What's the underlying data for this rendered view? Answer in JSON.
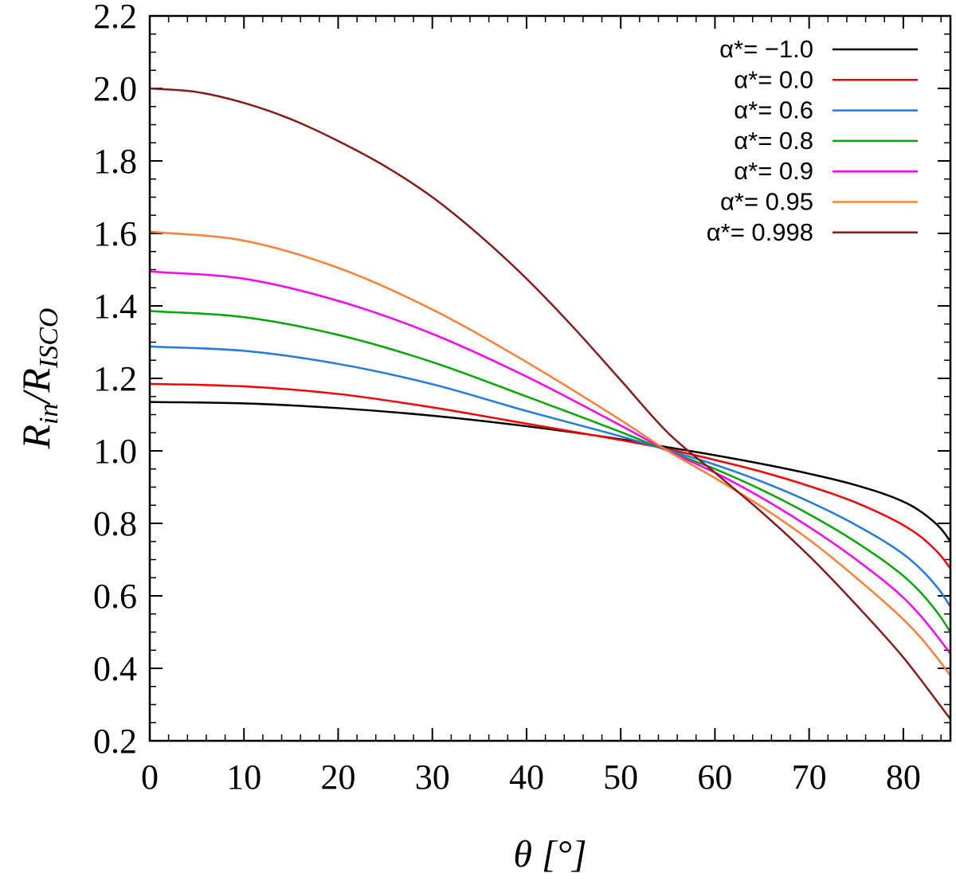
{
  "chart_data": {
    "type": "line",
    "title": "",
    "xlabel": "θ [°]",
    "ylabel": "R_in/R_ISCO",
    "xlim": [
      0,
      85
    ],
    "ylim": [
      0.2,
      2.2
    ],
    "x_ticks": [
      "0",
      "10",
      "20",
      "30",
      "40",
      "50",
      "60",
      "70",
      "80"
    ],
    "y_ticks": [
      "0.2",
      "0.4",
      "0.6",
      "0.8",
      "1.0",
      "1.2",
      "1.4",
      "1.6",
      "1.8",
      "2.0",
      "2.2"
    ],
    "grid": false,
    "legend_position": "top-right",
    "series": [
      {
        "name": "α*=   −1.0",
        "color": "#000000",
        "x": [
          0,
          10,
          20,
          30,
          40,
          50,
          55,
          60,
          65,
          70,
          75,
          80,
          82,
          84,
          85
        ],
        "y": [
          1.135,
          1.131,
          1.118,
          1.097,
          1.068,
          1.032,
          1.01,
          0.988,
          0.964,
          0.937,
          0.905,
          0.86,
          0.83,
          0.785,
          0.75
        ]
      },
      {
        "name": "α*=     0.0",
        "color": "#ff0000",
        "x": [
          0,
          10,
          20,
          30,
          40,
          50,
          55,
          60,
          65,
          70,
          75,
          80,
          82,
          84,
          85
        ],
        "y": [
          1.185,
          1.178,
          1.157,
          1.12,
          1.075,
          1.03,
          1.005,
          0.975,
          0.942,
          0.903,
          0.857,
          0.795,
          0.76,
          0.71,
          0.675
        ]
      },
      {
        "name": "α*=     0.6",
        "color": "#1e7be8",
        "x": [
          0,
          10,
          20,
          30,
          40,
          50,
          55,
          60,
          65,
          70,
          75,
          80,
          82,
          84,
          85
        ],
        "y": [
          1.288,
          1.276,
          1.24,
          1.184,
          1.11,
          1.04,
          1.002,
          0.962,
          0.915,
          0.86,
          0.795,
          0.715,
          0.67,
          0.61,
          0.57
        ]
      },
      {
        "name": "α*=     0.8",
        "color": "#00aa00",
        "x": [
          0,
          10,
          20,
          30,
          40,
          50,
          55,
          60,
          65,
          70,
          75,
          80,
          82,
          84,
          85
        ],
        "y": [
          1.386,
          1.369,
          1.32,
          1.245,
          1.15,
          1.052,
          1.0,
          0.95,
          0.892,
          0.825,
          0.748,
          0.655,
          0.605,
          0.54,
          0.5
        ]
      },
      {
        "name": "α*=     0.9",
        "color": "#ff00ff",
        "x": [
          0,
          10,
          20,
          30,
          40,
          50,
          55,
          60,
          65,
          70,
          75,
          80,
          82,
          84,
          85
        ],
        "y": [
          1.495,
          1.475,
          1.414,
          1.323,
          1.205,
          1.07,
          1.0,
          0.94,
          0.87,
          0.79,
          0.7,
          0.595,
          0.54,
          0.475,
          0.44
        ]
      },
      {
        "name": "α*=   0.95",
        "color": "#ff8033",
        "x": [
          0,
          10,
          20,
          30,
          40,
          50,
          55,
          60,
          65,
          70,
          75,
          80,
          82,
          84,
          85
        ],
        "y": [
          1.605,
          1.58,
          1.505,
          1.39,
          1.245,
          1.085,
          1.0,
          0.925,
          0.845,
          0.755,
          0.65,
          0.535,
          0.48,
          0.415,
          0.38
        ]
      },
      {
        "name": "α*= 0.998",
        "color": "#8b1a1a",
        "x": [
          0,
          5,
          10,
          15,
          20,
          25,
          30,
          35,
          40,
          45,
          50,
          55,
          60,
          65,
          70,
          75,
          80,
          85
        ],
        "y": [
          2.0,
          1.99,
          1.96,
          1.915,
          1.855,
          1.785,
          1.7,
          1.595,
          1.475,
          1.34,
          1.195,
          1.05,
          0.94,
          0.83,
          0.71,
          0.575,
          0.43,
          0.26
        ]
      }
    ]
  }
}
